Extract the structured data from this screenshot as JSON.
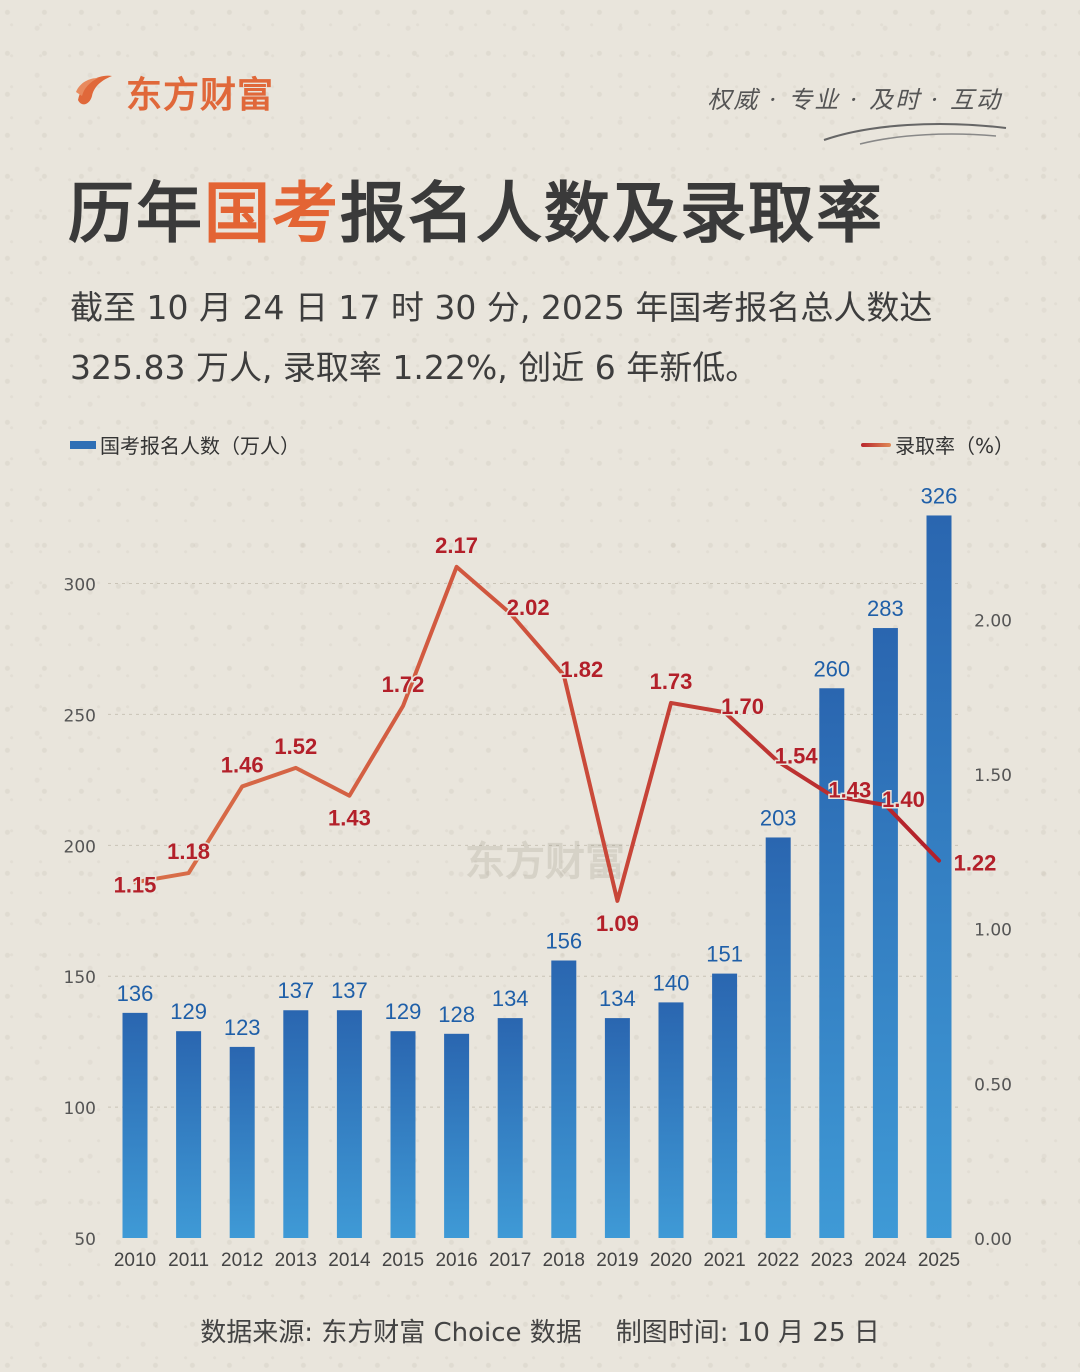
{
  "brand": {
    "name": "东方财富",
    "slogan": "权威 · 专业 · 及时 · 互动",
    "watermark": "东方财富"
  },
  "title": {
    "pre": "历年",
    "highlight": "国考",
    "post": "报名人数及录取率"
  },
  "subtitle": {
    "line1": "截至 10 月 24 日 17 时 30 分, 2025 年国考报名总人数达",
    "line2": "325.83 万人, 录取率 1.22%, 创近 6 年新低。"
  },
  "colors": {
    "accent": "#e36434",
    "bar": "#2f6fb5",
    "line": "#c0392b",
    "bar_label": "#1f5fa8",
    "line_label": "#b3202a"
  },
  "chart_data": {
    "type": "bar+line",
    "categories": [
      "2010",
      "2011",
      "2012",
      "2013",
      "2014",
      "2015",
      "2016",
      "2017",
      "2018",
      "2019",
      "2020",
      "2021",
      "2022",
      "2023",
      "2024",
      "2025"
    ],
    "series": [
      {
        "name": "国考报名人数（万人）",
        "type": "bar",
        "axis": "left",
        "values": [
          136,
          129,
          123,
          137,
          137,
          129,
          128,
          134,
          156,
          134,
          140,
          151,
          203,
          260,
          283,
          326
        ]
      },
      {
        "name": "录取率（%）",
        "type": "line",
        "axis": "right",
        "values": [
          1.15,
          1.18,
          1.46,
          1.52,
          1.43,
          1.72,
          2.17,
          2.02,
          1.82,
          1.09,
          1.73,
          1.7,
          1.54,
          1.43,
          1.4,
          1.22
        ]
      }
    ],
    "y_left": {
      "ticks": [
        "50",
        "100",
        "150",
        "200",
        "250",
        "300"
      ],
      "range": [
        50,
        330
      ]
    },
    "y_right": {
      "ticks": [
        "0.00",
        "0.50",
        "1.00",
        "1.50",
        "2.00"
      ],
      "range": [
        0,
        2.37
      ]
    },
    "grid": true,
    "legend": "top"
  },
  "footer": {
    "source": "数据来源: 东方财富 Choice 数据",
    "date": "制图时间: 10 月 25 日"
  }
}
